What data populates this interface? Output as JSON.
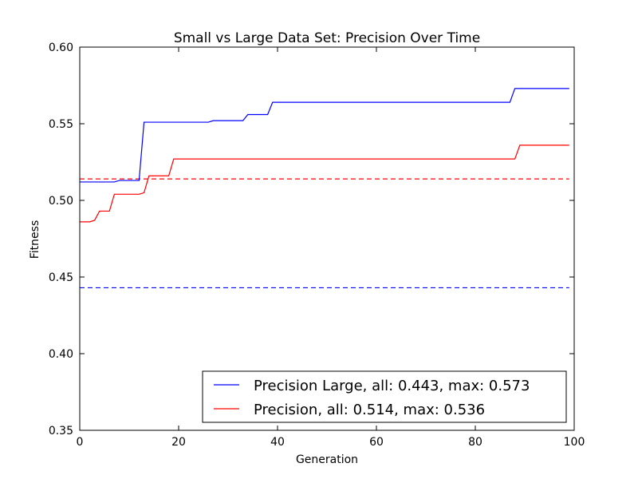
{
  "chart_data": {
    "type": "line",
    "title": "Small vs Large Data Set: Precision Over Time",
    "xlabel": "Generation",
    "ylabel": "Fitness",
    "xlim": [
      0,
      100
    ],
    "ylim": [
      0.35,
      0.6
    ],
    "xticks": [
      0,
      20,
      40,
      60,
      80,
      100
    ],
    "xtick_labels": [
      "0",
      "20",
      "40",
      "60",
      "80",
      "100"
    ],
    "yticks": [
      0.35,
      0.4,
      0.45,
      0.5,
      0.55,
      0.6
    ],
    "ytick_labels": [
      "0.35",
      "0.40",
      "0.45",
      "0.50",
      "0.55",
      "0.60"
    ],
    "grid": false,
    "legend_position": "lower-right",
    "series": [
      {
        "name": "Precision Large, all: 0.443, max: 0.573",
        "color": "#0000ff",
        "style": "solid",
        "x": [
          0,
          7,
          8,
          12,
          13,
          26,
          27,
          33,
          34,
          38,
          39,
          87,
          88,
          99
        ],
        "y": [
          0.512,
          0.512,
          0.513,
          0.513,
          0.551,
          0.551,
          0.552,
          0.552,
          0.556,
          0.556,
          0.564,
          0.564,
          0.573,
          0.573
        ]
      },
      {
        "name": "Precision, all: 0.514, max: 0.536",
        "color": "#ff0000",
        "style": "solid",
        "x": [
          0,
          2,
          3,
          4,
          6,
          7,
          12,
          13,
          14,
          18,
          19,
          88,
          89,
          99
        ],
        "y": [
          0.486,
          0.486,
          0.487,
          0.493,
          0.493,
          0.504,
          0.504,
          0.505,
          0.516,
          0.516,
          0.527,
          0.527,
          0.536,
          0.536
        ]
      }
    ],
    "reference_lines": [
      {
        "y": 0.443,
        "color": "#0000ff",
        "style": "dashed"
      },
      {
        "y": 0.514,
        "color": "#ff0000",
        "style": "dashed"
      }
    ]
  }
}
